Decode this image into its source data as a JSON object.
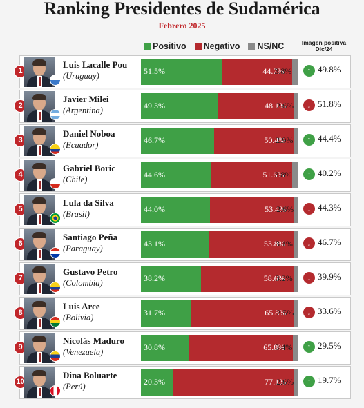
{
  "chart_data": {
    "type": "bar",
    "title": "Ranking Presidentes de Sudamérica",
    "subtitle": "Febrero 2025",
    "legend": [
      "Positivo",
      "Negativo",
      "NS/NC"
    ],
    "legend_placement": "top",
    "extra_column_header": "Imagen positiva Dic/24",
    "colors": {
      "positivo": "#3fa046",
      "negativo": "#b42a2e",
      "nsnc": "#8a8a8a"
    },
    "rows": [
      {
        "rank": "1",
        "name": "Luis Lacalle Pou",
        "country": "(Uruguay)",
        "positivo": 51.5,
        "negativo": 44.7,
        "nsnc": 3.8,
        "trend": "up",
        "imagen_dic24": "49.8%"
      },
      {
        "rank": "2",
        "name": "Javier Milei",
        "country": "(Argentina)",
        "positivo": 49.3,
        "negativo": 48.1,
        "nsnc": 2.6,
        "trend": "down",
        "imagen_dic24": "51.8%"
      },
      {
        "rank": "3",
        "name": "Daniel Noboa",
        "country": "(Ecuador)",
        "positivo": 46.7,
        "negativo": 50.4,
        "nsnc": 2.9,
        "trend": "up",
        "imagen_dic24": "44.4%"
      },
      {
        "rank": "4",
        "name": "Gabriel Boric",
        "country": "(Chile)",
        "positivo": 44.6,
        "negativo": 51.6,
        "nsnc": 3.8,
        "trend": "up",
        "imagen_dic24": "40.2%"
      },
      {
        "rank": "5",
        "name": "Lula da Silva",
        "country": "(Brasil)",
        "positivo": 44.0,
        "negativo": 53.4,
        "nsnc": 2.6,
        "trend": "down",
        "imagen_dic24": "44.3%"
      },
      {
        "rank": "6",
        "name": "Santiago Peña",
        "country": "(Paraguay)",
        "positivo": 43.1,
        "negativo": 53.8,
        "nsnc": 3.1,
        "trend": "down",
        "imagen_dic24": "46.7%"
      },
      {
        "rank": "7",
        "name": "Gustavo Petro",
        "country": "(Colombia)",
        "positivo": 38.2,
        "negativo": 58.6,
        "nsnc": 3.2,
        "trend": "down",
        "imagen_dic24": "39.9%"
      },
      {
        "rank": "8",
        "name": "Luis Arce",
        "country": "(Bolivia)",
        "positivo": 31.7,
        "negativo": 65.8,
        "nsnc": 2.5,
        "trend": "down",
        "imagen_dic24": "33.6%"
      },
      {
        "rank": "9",
        "name": "Nicolás Maduro",
        "country": "(Venezuela)",
        "positivo": 30.8,
        "negativo": 65.8,
        "nsnc": 3.4,
        "trend": "up",
        "imagen_dic24": "29.5%"
      },
      {
        "rank": "10",
        "name": "Dina Boluarte",
        "country": "(Perú)",
        "positivo": 20.3,
        "negativo": 77.1,
        "nsnc": 2.6,
        "trend": "up",
        "imagen_dic24": "19.7%"
      }
    ]
  }
}
